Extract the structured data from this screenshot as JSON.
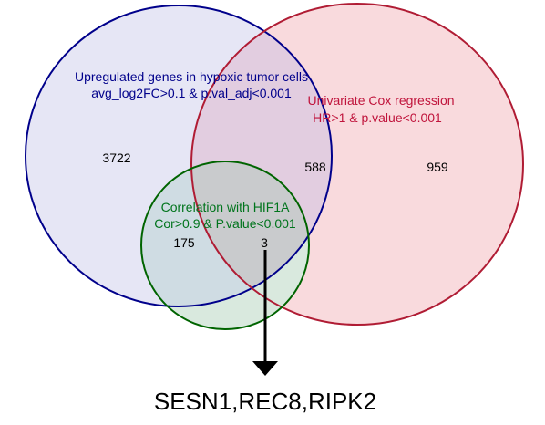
{
  "sets": {
    "hypoxic": {
      "title": "Upregulated genes in hypoxic tumor cells",
      "criteria": "avg_log2FC>0.1 & p.val_adj<0.001",
      "stroke": "#00008b",
      "fill": "#e6e6f5",
      "text_color": "#00008b"
    },
    "cox": {
      "title": "Univariate Cox regression",
      "criteria": "HR>1 & p.value<0.001",
      "stroke": "#b01c34",
      "fill": "#f9dadd",
      "text_color": "#c0143c"
    },
    "hif1a": {
      "title": "Correlation with HIF1A",
      "criteria": "Cor>0.9 & P.value<0.001",
      "stroke": "#006400",
      "fill": "#d9e9de",
      "text_color": "#00741c"
    }
  },
  "regions": {
    "hypoxic_only": "3722",
    "hypoxic_cox": "588",
    "cox_only": "959",
    "hypoxic_hif1a": "175",
    "all_three": "3"
  },
  "overlap_colors": {
    "hypoxic_cox": "#e2cde0",
    "hypoxic_hif1a": "#cfdce3",
    "all_three": "#c9cbcd"
  },
  "result": {
    "genes": "SESN1,REC8,RIPK2",
    "arrow_color": "#000000"
  }
}
